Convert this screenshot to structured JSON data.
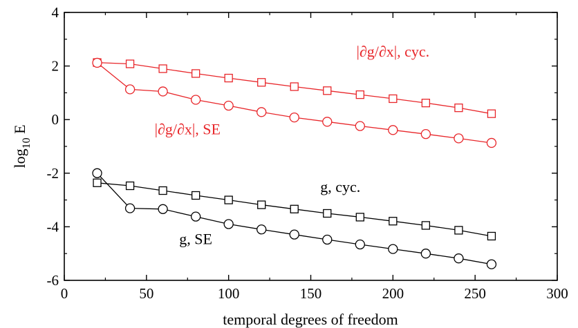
{
  "chart_data": {
    "type": "line",
    "title": "",
    "xlabel": "temporal degrees of freedom",
    "ylabel_main": "log",
    "ylabel_sub": "10",
    "ylabel_tail": " E",
    "xlim": [
      0,
      300
    ],
    "ylim": [
      -6,
      4
    ],
    "xticks": [
      0,
      50,
      100,
      150,
      200,
      250,
      300
    ],
    "yticks": [
      -6,
      -4,
      -2,
      0,
      2,
      4
    ],
    "grid": false,
    "legend": "none",
    "x": [
      20,
      40,
      60,
      80,
      100,
      120,
      140,
      160,
      180,
      200,
      220,
      240,
      260
    ],
    "series": [
      {
        "name": "|∂g/∂x|, cyc.",
        "color": "#e8262a",
        "marker": "square",
        "values": [
          2.13,
          2.08,
          1.9,
          1.72,
          1.55,
          1.39,
          1.23,
          1.08,
          0.93,
          0.78,
          0.62,
          0.44,
          0.22
        ]
      },
      {
        "name": "|∂g/∂x|, SE",
        "color": "#e8262a",
        "marker": "circle",
        "values": [
          2.12,
          1.13,
          1.05,
          0.74,
          0.52,
          0.28,
          0.08,
          -0.08,
          -0.24,
          -0.39,
          -0.54,
          -0.7,
          -0.87
        ]
      },
      {
        "name": "g, cyc.",
        "color": "#000000",
        "marker": "square",
        "values": [
          -2.36,
          -2.47,
          -2.65,
          -2.83,
          -3.0,
          -3.18,
          -3.34,
          -3.5,
          -3.64,
          -3.79,
          -3.95,
          -4.13,
          -4.35
        ]
      },
      {
        "name": "g, SE",
        "color": "#000000",
        "marker": "circle",
        "values": [
          -2.0,
          -3.31,
          -3.34,
          -3.62,
          -3.9,
          -4.1,
          -4.29,
          -4.48,
          -4.66,
          -4.83,
          -5.0,
          -5.18,
          -5.4
        ]
      }
    ],
    "annotations": [
      {
        "text": "|∂g/∂x|, cyc.",
        "color": "#e8262a",
        "x": 200,
        "y": 2.35
      },
      {
        "text": "|∂g/∂x|, SE",
        "color": "#e8262a",
        "x": 75,
        "y": -0.55
      },
      {
        "text": "g, cyc.",
        "color": "#000000",
        "x": 168,
        "y": -2.7
      },
      {
        "text": "g, SE",
        "color": "#000000",
        "x": 80,
        "y": -4.65
      }
    ]
  }
}
